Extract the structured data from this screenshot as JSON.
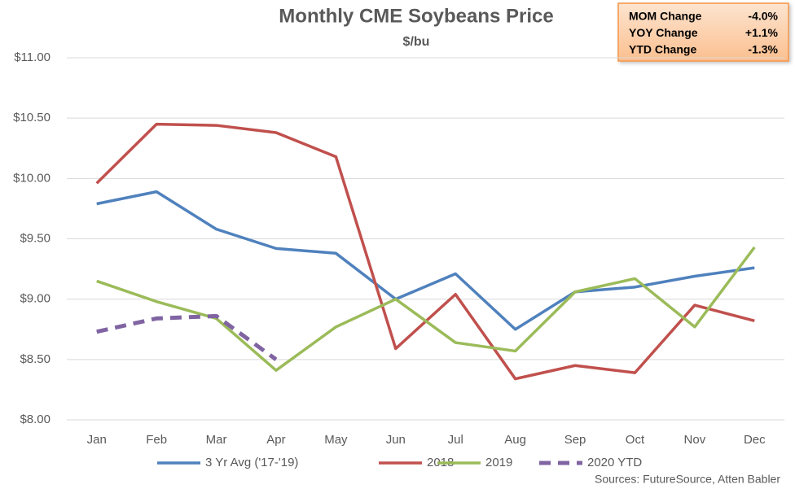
{
  "chart_data": {
    "type": "line",
    "title": "Monthly CME Soybeans Price",
    "subtitle": "$/bu",
    "categories": [
      "Jan",
      "Feb",
      "Mar",
      "Apr",
      "May",
      "Jun",
      "Jul",
      "Aug",
      "Sep",
      "Oct",
      "Nov",
      "Dec"
    ],
    "series": [
      {
        "name": "3 Yr Avg ('17-'19)",
        "color": "#4f81bd",
        "dashed": false,
        "values": [
          9.79,
          9.89,
          9.58,
          9.42,
          9.38,
          9.0,
          9.21,
          8.75,
          9.06,
          9.1,
          9.19,
          9.26
        ]
      },
      {
        "name": "2018",
        "color": "#c0504d",
        "dashed": false,
        "values": [
          9.96,
          10.45,
          10.44,
          10.38,
          10.18,
          8.59,
          9.04,
          8.34,
          8.45,
          8.39,
          8.95,
          8.82
        ]
      },
      {
        "name": "2019",
        "color": "#9bbb59",
        "dashed": false,
        "values": [
          9.15,
          8.98,
          8.84,
          8.41,
          8.77,
          9.0,
          8.64,
          8.57,
          9.06,
          9.17,
          8.77,
          9.43
        ]
      },
      {
        "name": "2020 YTD",
        "color": "#8064a2",
        "dashed": true,
        "values": [
          8.73,
          8.84,
          8.86,
          8.5,
          null,
          null,
          null,
          null,
          null,
          null,
          null,
          null
        ]
      }
    ],
    "ylim": [
      8,
      11
    ],
    "yticks": [
      {
        "value": 8,
        "label": "$8.00"
      },
      {
        "value": 8.5,
        "label": "$8.50"
      },
      {
        "value": 9,
        "label": "$9.00"
      },
      {
        "value": 9.5,
        "label": "$9.50"
      },
      {
        "value": 10,
        "label": "$10.00"
      },
      {
        "value": 10.5,
        "label": "$10.50"
      },
      {
        "value": 11,
        "label": "$11.00"
      }
    ],
    "grid": true,
    "legend": "bottom",
    "source": "Sources: FutureSource, Atten Babler"
  },
  "info_box": {
    "rows": [
      [
        "MOM Change",
        "-4.0%"
      ],
      [
        "YOY Change",
        "+1.1%"
      ],
      [
        "YTD Change",
        "-1.3%"
      ]
    ]
  }
}
